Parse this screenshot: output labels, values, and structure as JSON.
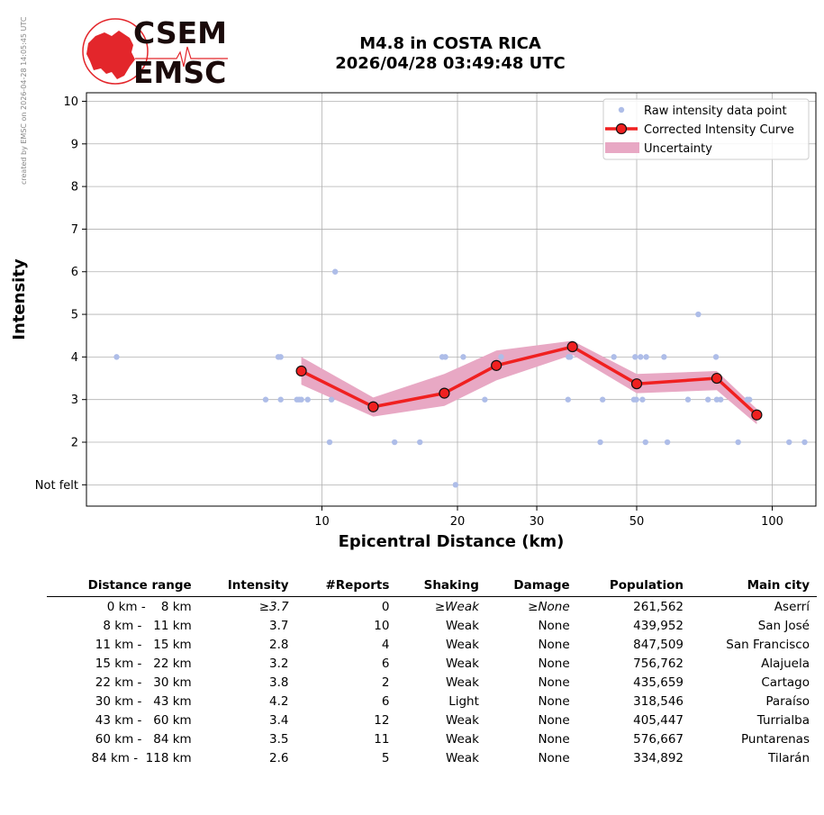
{
  "side_note": "created by EMSC on 2026-04-28 14:05:45 UTC",
  "logo": {
    "line1": "CSEM",
    "line2": "EMSC",
    "color_red": "#e3262b",
    "color_dark": "#1a0a0a"
  },
  "header": {
    "title_line1": "M4.8 in COSTA RICA",
    "title_line2": "2026/04/28 03:49:48 UTC"
  },
  "chart_data": {
    "type": "scatter",
    "xlabel": "Epicentral Distance (km)",
    "ylabel": "Intensity",
    "x_scale": "log",
    "xlim": [
      3,
      125
    ],
    "ylim": [
      0.5,
      10.2
    ],
    "x_ticks": [
      10,
      20,
      30,
      50,
      100
    ],
    "x_tick_labels": [
      "10",
      "20",
      "30",
      "50",
      "100"
    ],
    "y_ticks": [
      1,
      2,
      3,
      4,
      5,
      6,
      7,
      8,
      9,
      10
    ],
    "y_tick_labels": [
      "Not felt",
      "2",
      "3",
      "4",
      "5",
      "6",
      "7",
      "8",
      "9",
      "10"
    ],
    "grid": true,
    "legend_position": "top-right",
    "legend": [
      "Raw intensity data point",
      "Corrected Intensity Curve",
      "Uncertainty"
    ],
    "colors": {
      "raw": "#aebde8",
      "curve": "#f02020",
      "marker_edge": "#111111",
      "uncertainty": "#e8a8c4"
    },
    "series": [
      {
        "name": "Raw intensity data point",
        "kind": "points",
        "points": [
          [
            3.5,
            4
          ],
          [
            7.5,
            3
          ],
          [
            8.0,
            4
          ],
          [
            8.1,
            4
          ],
          [
            8.1,
            3
          ],
          [
            8.8,
            3
          ],
          [
            8.9,
            3
          ],
          [
            9.0,
            3
          ],
          [
            9.3,
            3
          ],
          [
            10.4,
            2
          ],
          [
            10.5,
            3
          ],
          [
            10.7,
            6
          ],
          [
            14.5,
            2
          ],
          [
            16.5,
            2
          ],
          [
            18.5,
            4
          ],
          [
            18.8,
            4
          ],
          [
            19.8,
            1
          ],
          [
            20.6,
            4
          ],
          [
            23.0,
            3
          ],
          [
            25.0,
            4
          ],
          [
            35.2,
            3
          ],
          [
            35.3,
            4
          ],
          [
            35.6,
            4
          ],
          [
            41.5,
            2
          ],
          [
            42.0,
            3
          ],
          [
            44.5,
            4
          ],
          [
            49.3,
            3
          ],
          [
            49.6,
            4
          ],
          [
            49.9,
            3
          ],
          [
            51.0,
            4
          ],
          [
            51.5,
            3
          ],
          [
            52.3,
            2
          ],
          [
            52.5,
            4
          ],
          [
            57.5,
            4
          ],
          [
            58.5,
            2
          ],
          [
            65.0,
            3
          ],
          [
            68.5,
            5
          ],
          [
            72.0,
            3
          ],
          [
            75.0,
            4
          ],
          [
            75.3,
            3
          ],
          [
            76.8,
            3
          ],
          [
            84.0,
            2
          ],
          [
            88.0,
            3
          ],
          [
            89.0,
            3
          ],
          [
            109.0,
            2
          ],
          [
            118.0,
            2
          ]
        ]
      },
      {
        "name": "Corrected Intensity Curve",
        "kind": "line",
        "points": [
          [
            9.0,
            3.67
          ],
          [
            13.0,
            2.83
          ],
          [
            18.7,
            3.15
          ],
          [
            24.4,
            3.8
          ],
          [
            36.0,
            4.24
          ],
          [
            50.0,
            3.37
          ],
          [
            75.3,
            3.5
          ],
          [
            92.4,
            2.64
          ]
        ]
      },
      {
        "name": "Uncertainty",
        "kind": "band",
        "upper": [
          [
            9.0,
            4.0
          ],
          [
            13.0,
            3.05
          ],
          [
            18.7,
            3.6
          ],
          [
            24.4,
            4.15
          ],
          [
            36.0,
            4.38
          ],
          [
            50.0,
            3.6
          ],
          [
            75.3,
            3.67
          ],
          [
            92.4,
            2.78
          ]
        ],
        "lower": [
          [
            9.0,
            3.35
          ],
          [
            13.0,
            2.6
          ],
          [
            18.7,
            2.85
          ],
          [
            24.4,
            3.45
          ],
          [
            36.0,
            4.05
          ],
          [
            50.0,
            3.15
          ],
          [
            75.3,
            3.22
          ],
          [
            92.4,
            2.42
          ]
        ]
      }
    ]
  },
  "table": {
    "headers": [
      "Distance range",
      "Intensity",
      "#Reports",
      "Shaking",
      "Damage",
      "Population",
      "Main city"
    ],
    "rows": [
      [
        "0 km -    8 km",
        "≥3.7",
        "0",
        "≥Weak",
        "≥None",
        "261,562",
        "Aserrí"
      ],
      [
        "8 km -   11 km",
        "3.7",
        "10",
        "Weak",
        "None",
        "439,952",
        "San José"
      ],
      [
        "11 km -   15 km",
        "2.8",
        "4",
        "Weak",
        "None",
        "847,509",
        "San Francisco"
      ],
      [
        "15 km -   22 km",
        "3.2",
        "6",
        "Weak",
        "None",
        "756,762",
        "Alajuela"
      ],
      [
        "22 km -   30 km",
        "3.8",
        "2",
        "Weak",
        "None",
        "435,659",
        "Cartago"
      ],
      [
        "30 km -   43 km",
        "4.2",
        "6",
        "Light",
        "None",
        "318,546",
        "Paraíso"
      ],
      [
        "43 km -   60 km",
        "3.4",
        "12",
        "Weak",
        "None",
        "405,447",
        "Turrialba"
      ],
      [
        "60 km -   84 km",
        "3.5",
        "11",
        "Weak",
        "None",
        "576,667",
        "Puntarenas"
      ],
      [
        "84 km -  118 km",
        "2.6",
        "5",
        "Weak",
        "None",
        "334,892",
        "Tilarán"
      ]
    ]
  }
}
